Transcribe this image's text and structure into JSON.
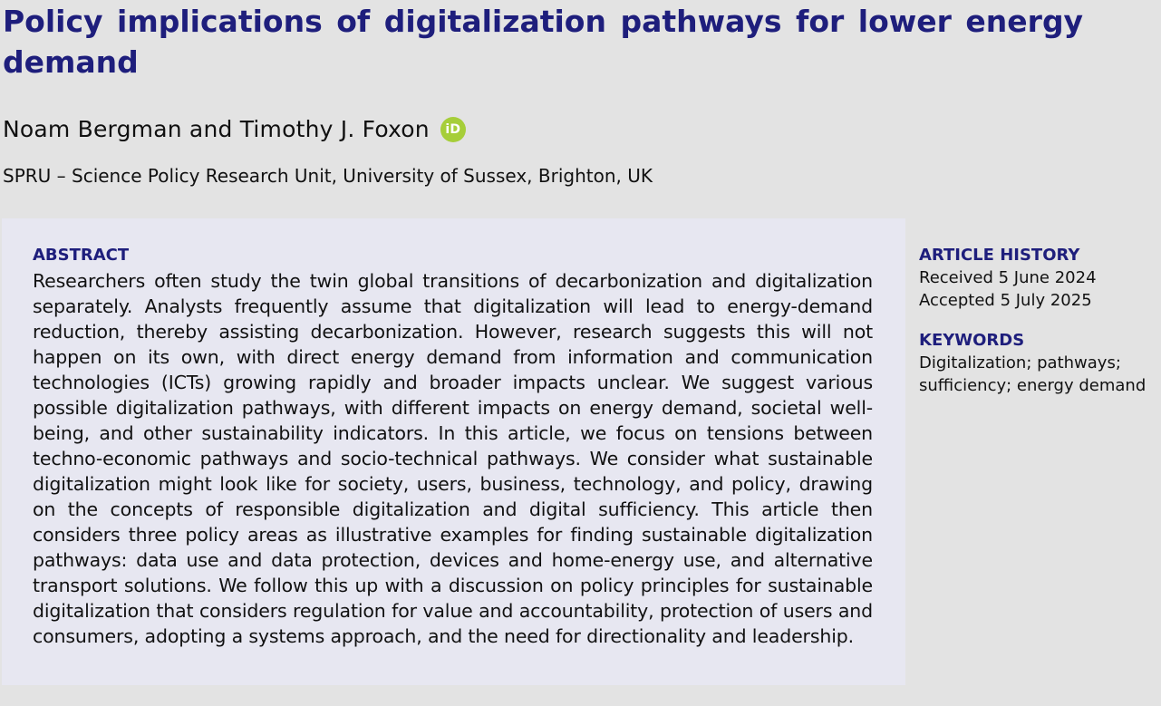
{
  "title": "Policy implications of digitalization pathways for lower energy demand",
  "authors": "Noam Bergman and Timothy J. Foxon",
  "orcid_icon": "orcid-icon",
  "orcid_label": "iD",
  "affiliation": "SPRU – Science Policy Research Unit, University of Sussex, Brighton, UK",
  "abstract": {
    "heading": "ABSTRACT",
    "text": "Researchers often study the twin global transitions of decarbonization and digitalization separately. Analysts frequently assume that digitalization will lead to energy-demand reduction, thereby assisting decarbonization. However, research suggests this will not happen on its own, with direct energy demand from information and communication technologies (ICTs) growing rapidly and broader impacts unclear. We suggest various possible digitalization pathways, with different impacts on energy demand, societal well-being, and other sustainability indicators. In this article, we focus on tensions between techno-economic pathways and socio-technical pathways. We consider what sustainable digitalization might look like for society, users, business, technology, and policy, drawing on the concepts of responsible digitalization and digital sufficiency. This article then considers three policy areas as illustrative examples for finding sustainable digitalization pathways: data use and data protection, devices and home-energy use, and alternative transport solutions. We follow this up with a discussion on policy principles for sustainable digitalization that considers regulation for value and accountability, protection of users and consumers, adopting a systems approach, and the need for directionality and leadership."
  },
  "article_history": {
    "heading": "ARTICLE HISTORY",
    "received": "Received 5 June 2024",
    "accepted": "Accepted 5 July 2025"
  },
  "keywords": {
    "heading": "KEYWORDS",
    "line1": "Digitalization; pathways;",
    "line2": "sufficiency; energy demand"
  },
  "colors": {
    "heading": "#1e1e7c",
    "orcid": "#a6ce39",
    "abstract_bg": "#e7e7f1",
    "page_bg": "#e3e3e3"
  }
}
